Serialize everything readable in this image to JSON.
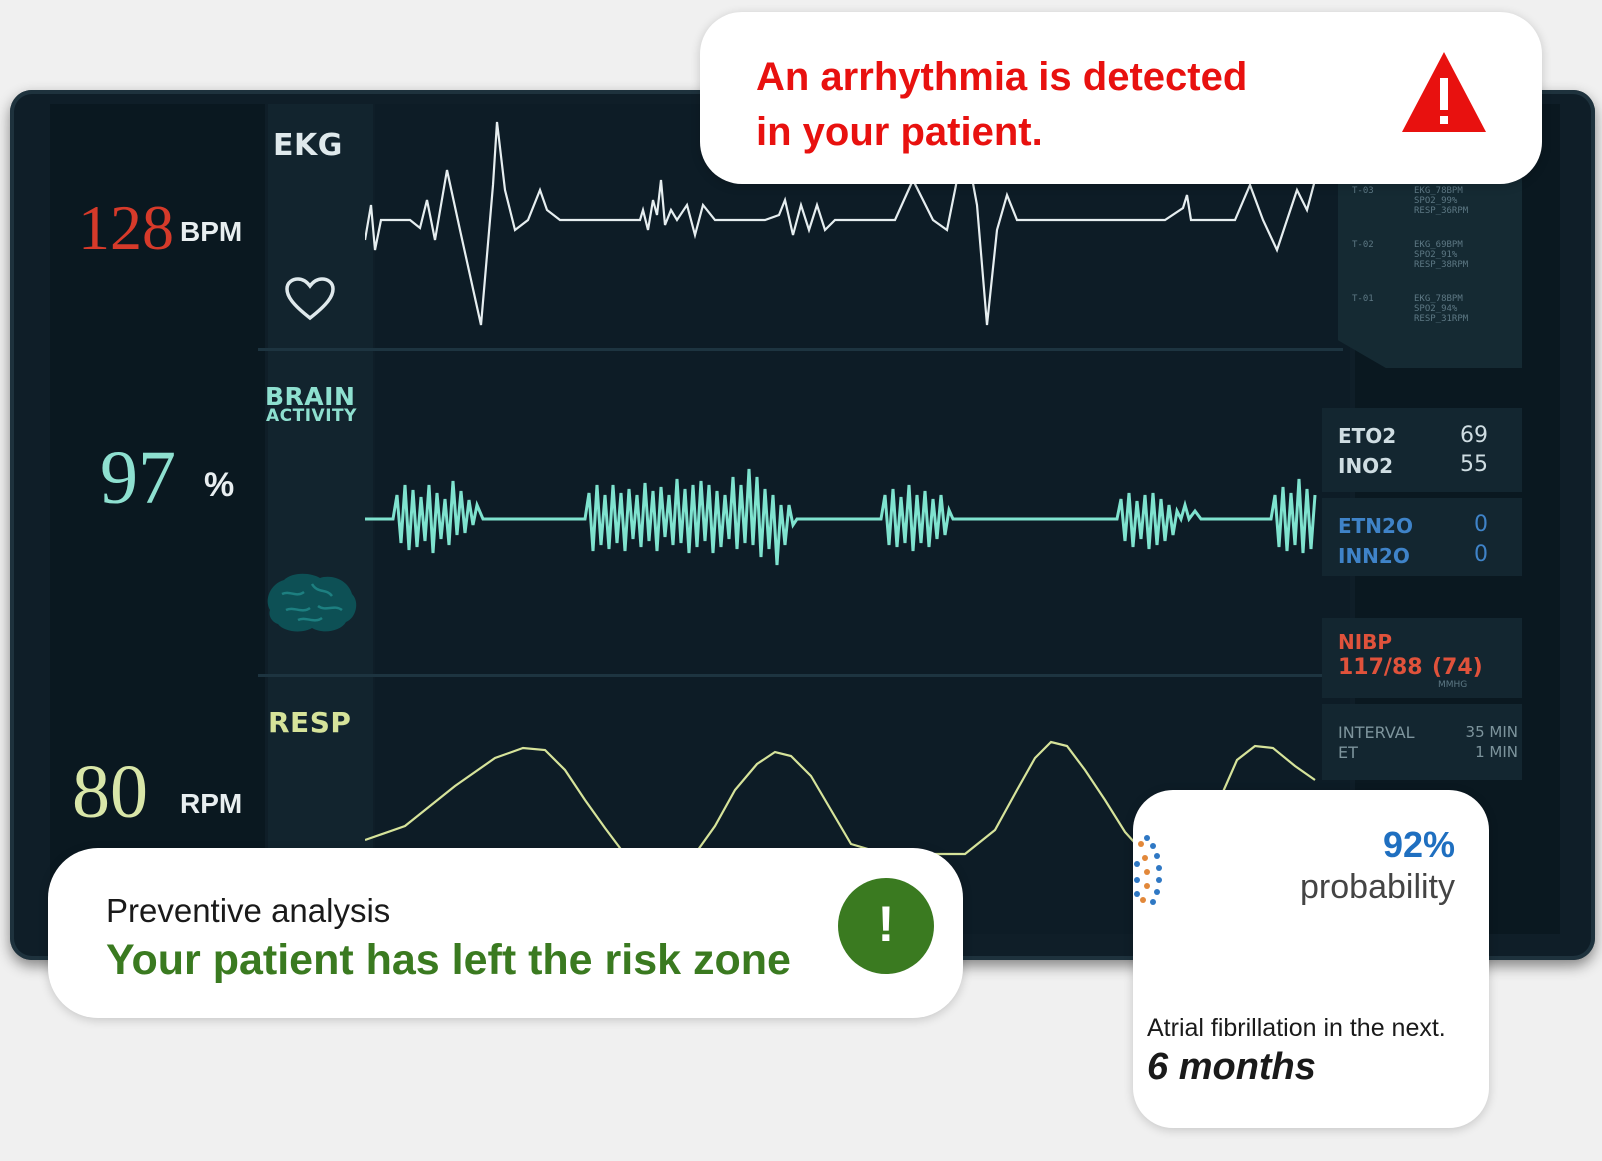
{
  "alerts": {
    "arrhythmia": {
      "line1": "An arrhythmia is detected",
      "line2": "in your patient.",
      "icon": "warning-triangle-icon",
      "color": "#e8110f"
    },
    "preventive": {
      "heading": "Preventive analysis",
      "message": "Your patient has left the risk zone",
      "icon": "exclamation-circle-icon",
      "color": "#3a7a20"
    },
    "prediction": {
      "probability": "92%",
      "probability_label": "probability",
      "condition": "Atrial fibrillation in the next.",
      "period": "6 months",
      "accent": "#1f6fc0"
    }
  },
  "vitals": {
    "heart_rate": {
      "value": "128",
      "unit": "BPM",
      "color": "#d63a2a"
    },
    "spo2": {
      "value": "97",
      "unit": "%",
      "color": "#8ee0d0"
    },
    "resp_rate": {
      "value": "80",
      "unit": "RPM",
      "color": "#d9e6a8"
    }
  },
  "waveforms": {
    "ekg": {
      "label": "EKG",
      "icon": "heart-icon"
    },
    "brain": {
      "label_line1": "BRAIN",
      "label_line2": "ACTIVITY",
      "icon": "brain-icon",
      "color": "#7fe3cf"
    },
    "resp": {
      "label": "RESP",
      "color": "#d6e39a"
    }
  },
  "log": [
    {
      "time": "T-03",
      "lines": [
        "EKG_78BPM",
        "SPO2_99%",
        "RESP_36RPM"
      ]
    },
    {
      "time": "T-02",
      "lines": [
        "EKG_69BPM",
        "SPO2_91%",
        "RESP_38RPM"
      ]
    },
    {
      "time": "T-01",
      "lines": [
        "EKG_78BPM",
        "SPO2_94%",
        "RESP_31RPM"
      ]
    }
  ],
  "gas": {
    "eto2": {
      "label": "ETO2",
      "value": "69"
    },
    "ino2": {
      "label": "INO2",
      "value": "55"
    },
    "etn2o": {
      "label": "ETN2O",
      "value": "0"
    },
    "inn2o": {
      "label": "INN2O",
      "value": "0"
    }
  },
  "nibp": {
    "label": "NIBP",
    "value": "117/88",
    "mean": "(74)",
    "unit": "MMHG",
    "color": "#e0523b"
  },
  "interval": {
    "label": "INTERVAL",
    "value": "35 MIN",
    "et_label": "ET",
    "et_value": "1 MIN"
  }
}
